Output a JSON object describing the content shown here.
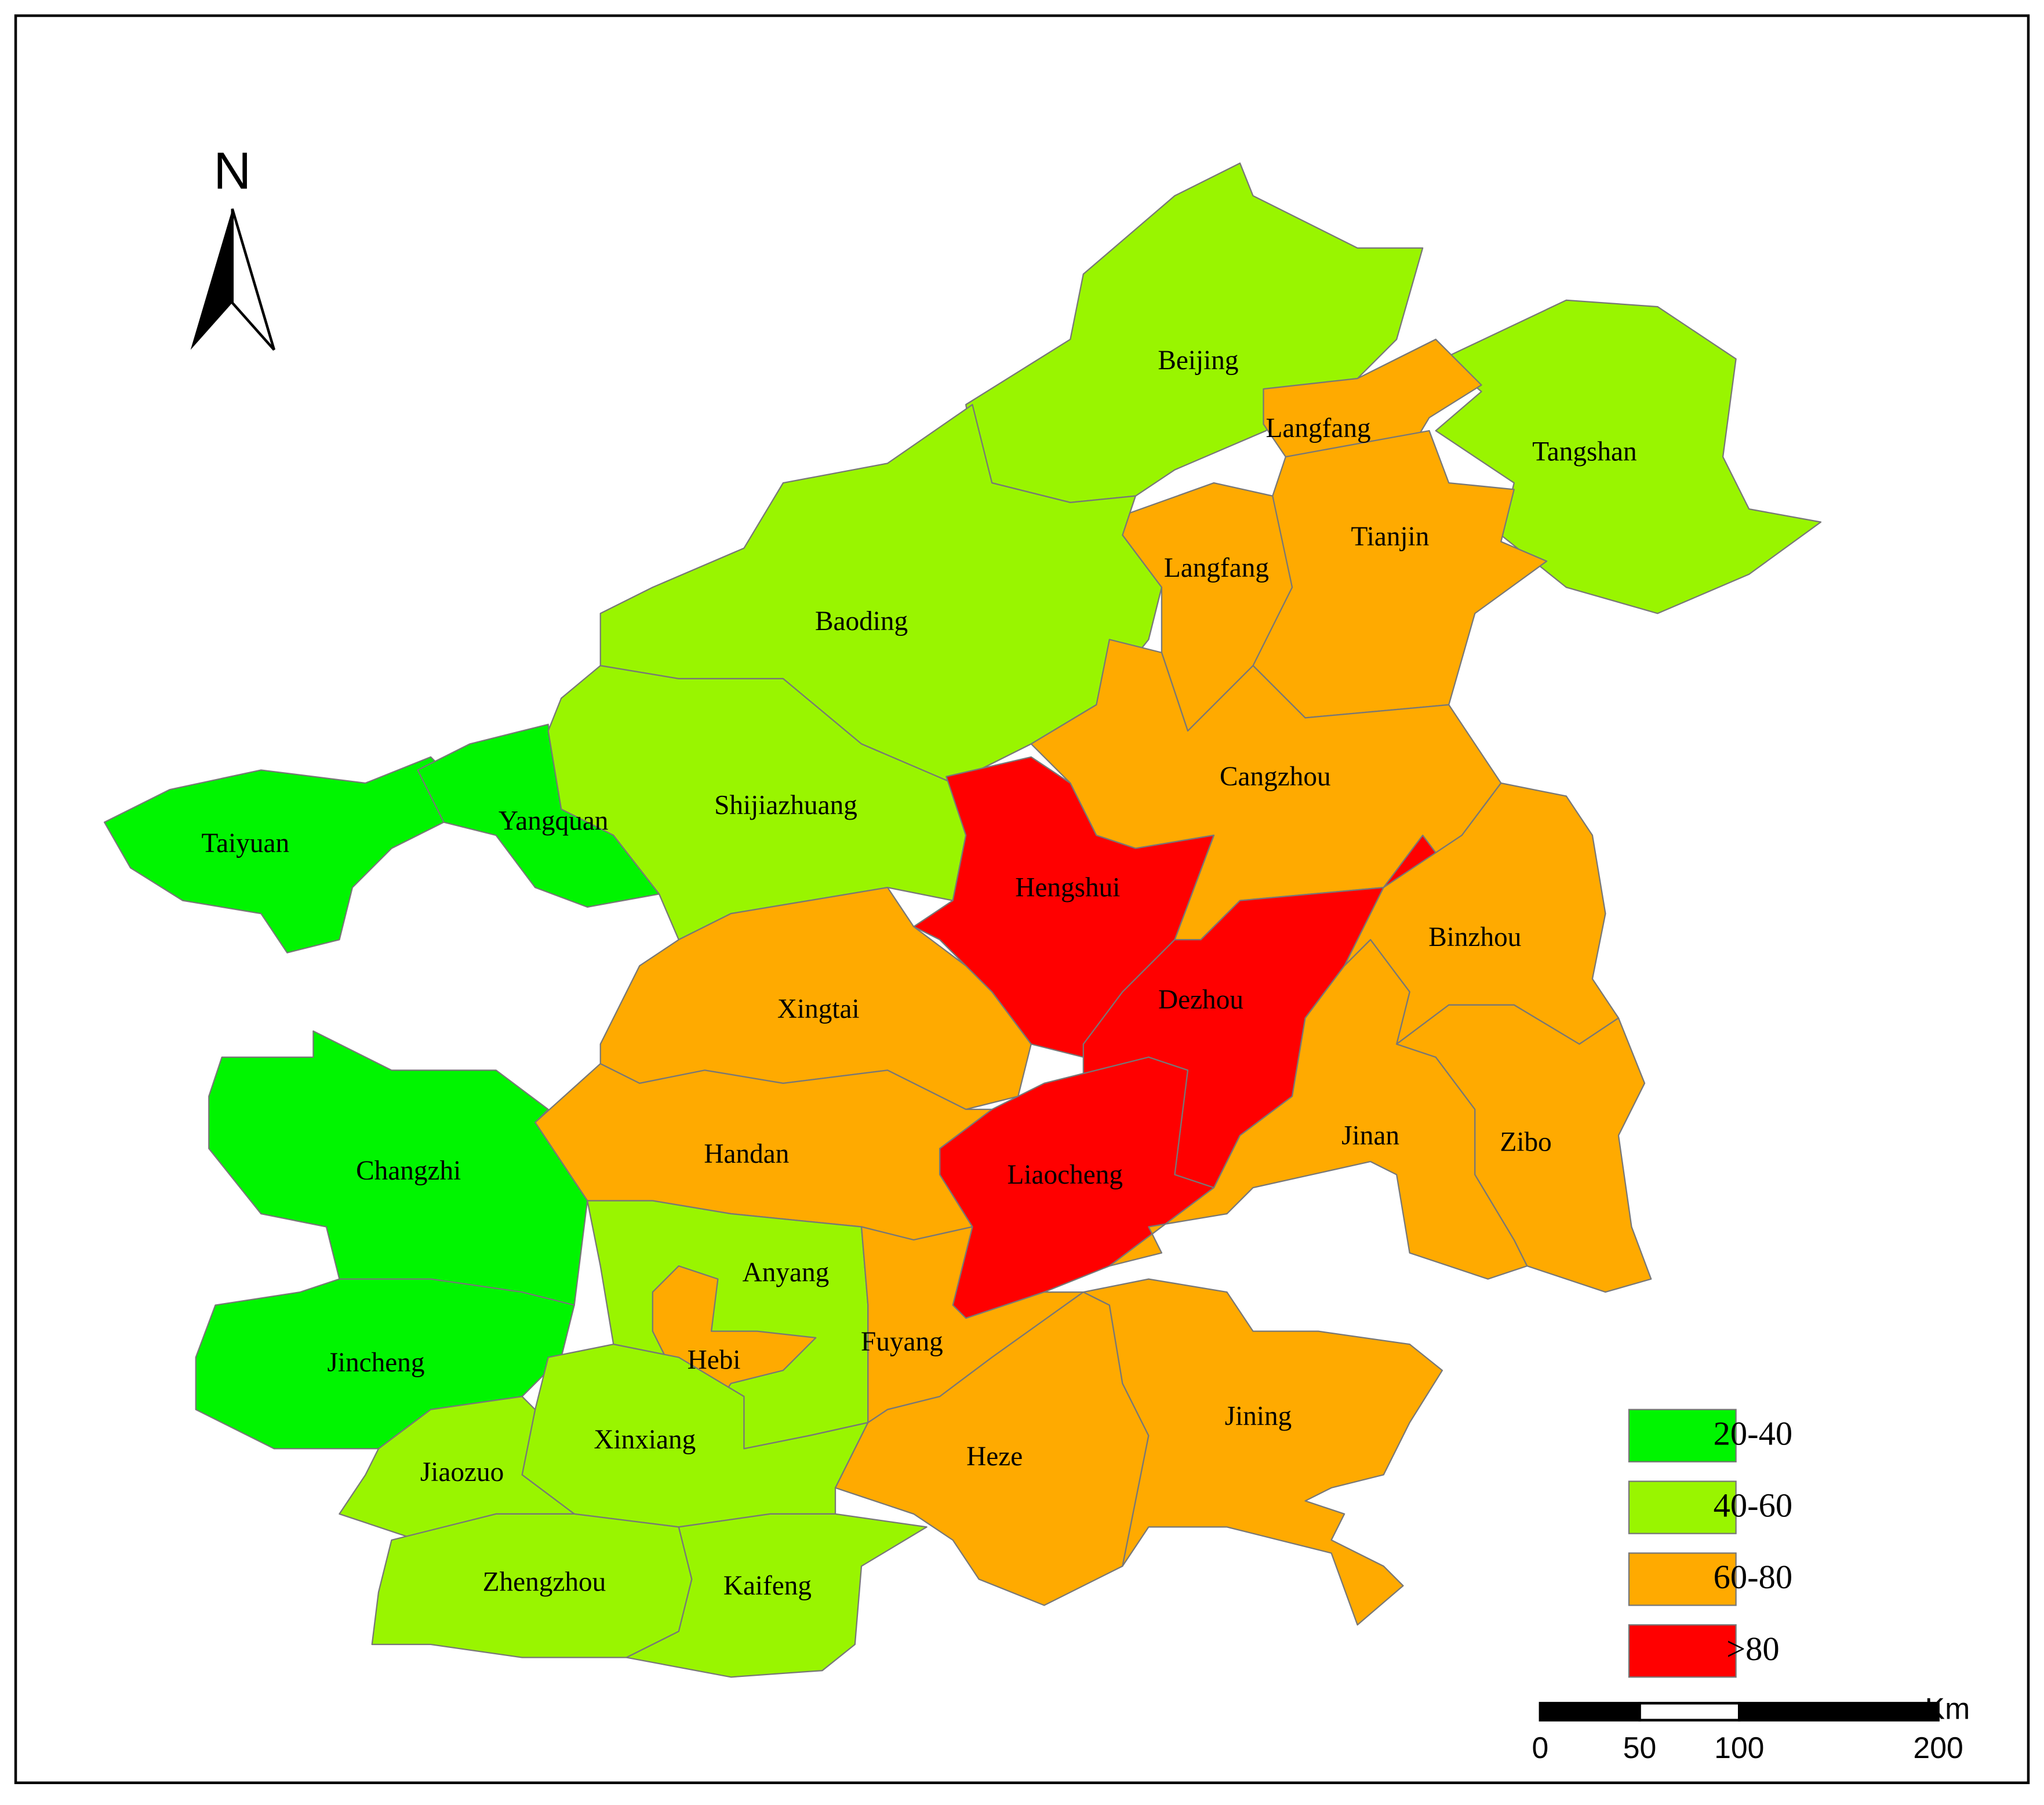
{
  "map": {
    "north": "N",
    "regions": [
      {
        "name": "Beijing",
        "color": "#99f500"
      },
      {
        "name": "Tangshan",
        "color": "#99f500"
      },
      {
        "name": "Langfang",
        "color": "#ffaa00"
      },
      {
        "name": "Tianjin",
        "color": "#ffaa00"
      },
      {
        "name": "Langfang",
        "color": "#ffaa00"
      },
      {
        "name": "Baoding",
        "color": "#99f500"
      },
      {
        "name": "Cangzhou",
        "color": "#ffaa00"
      },
      {
        "name": "Taiyuan",
        "color": "#00f500"
      },
      {
        "name": "Yangquan",
        "color": "#00f500"
      },
      {
        "name": "Shijiazhuang",
        "color": "#99f500"
      },
      {
        "name": "Hengshui",
        "color": "#ff0000"
      },
      {
        "name": "Dezhou",
        "color": "#ff0000"
      },
      {
        "name": "Liaocheng",
        "color": "#ff0000"
      },
      {
        "name": "Binzhou",
        "color": "#ffaa00"
      },
      {
        "name": "Jinan",
        "color": "#ffaa00"
      },
      {
        "name": "Zibo",
        "color": "#ffaa00"
      },
      {
        "name": "Xingtai",
        "color": "#ffaa00"
      },
      {
        "name": "Handan",
        "color": "#ffaa00"
      },
      {
        "name": "Changzhi",
        "color": "#00f500"
      },
      {
        "name": "Jincheng",
        "color": "#00f500"
      },
      {
        "name": "Anyang",
        "color": "#99f500"
      },
      {
        "name": "Hebi",
        "color": "#ffaa00"
      },
      {
        "name": "Fuyang",
        "color": "#ffaa00"
      },
      {
        "name": "Xinxiang",
        "color": "#99f500"
      },
      {
        "name": "Jiaozuo",
        "color": "#99f500"
      },
      {
        "name": "Heze",
        "color": "#ffaa00"
      },
      {
        "name": "Jining",
        "color": "#ffaa00"
      },
      {
        "name": "Zhengzhou",
        "color": "#99f500"
      },
      {
        "name": "Kaifeng",
        "color": "#99f500"
      }
    ],
    "legend": [
      {
        "label": "20-40",
        "color": "#00f500"
      },
      {
        "label": "40-60",
        "color": "#99f500"
      },
      {
        "label": "60-80",
        "color": "#ffaa00"
      },
      {
        "label": ">80",
        "color": "#ff0000"
      }
    ],
    "scale_bar": {
      "unit": "Km",
      "ticks": [
        0,
        50,
        100,
        200
      ]
    }
  }
}
